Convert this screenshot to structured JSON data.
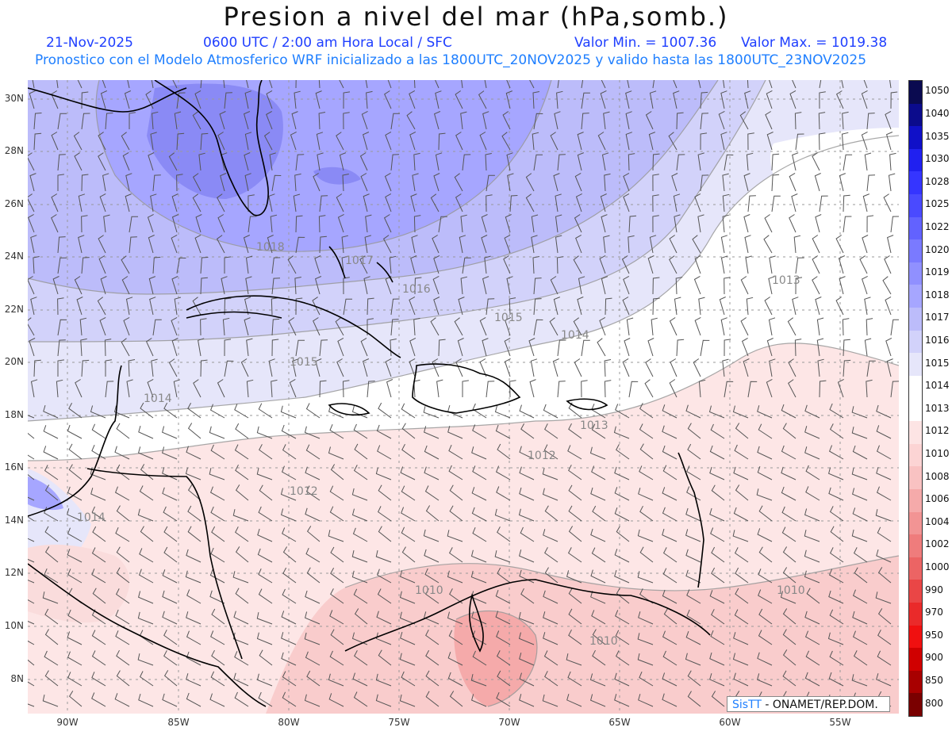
{
  "header": {
    "title": "Presion a nivel del mar (hPa,somb.)",
    "date": "21-Nov-2025",
    "time": "0600 UTC / 2:00 am Hora Local / SFC",
    "vmin": "Valor Min. = 1007.36",
    "vmax": "Valor Max. = 1019.38",
    "forecast": "Pronostico con el Modelo Atmosferico WRF inicializado a las 1800UTC_20NOV2025 y valido hasta las  1800UTC_23NOV2025"
  },
  "map": {
    "lat_labels": [
      "30N",
      "28N",
      "26N",
      "24N",
      "22N",
      "20N",
      "18N",
      "16N",
      "14N",
      "12N",
      "10N",
      "8N"
    ],
    "lon_labels": [
      "90W",
      "85W",
      "80W",
      "75W",
      "70W",
      "65W",
      "60W",
      "55W"
    ],
    "contour_labels": [
      "1018",
      "1017",
      "1016",
      "1015",
      "1015",
      "1014",
      "1014",
      "1013",
      "1013",
      "1012",
      "1012",
      "1014",
      "1010",
      "1010",
      "1010"
    ],
    "credit_brand": "SisTT",
    "credit_text": " - ONAMET/REP.DOM."
  },
  "colorbar": {
    "levels": [
      "1050",
      "1040",
      "1035",
      "1030",
      "1028",
      "1025",
      "1022",
      "1020",
      "1019",
      "1018",
      "1017",
      "1016",
      "1015",
      "1014",
      "1013",
      "1012",
      "1010",
      "1008",
      "1006",
      "1004",
      "1002",
      "1000",
      "990",
      "970",
      "950",
      "900",
      "850",
      "800"
    ],
    "colors": [
      "#0a0a50",
      "#0b0b8c",
      "#1010c8",
      "#2020f0",
      "#3535ff",
      "#4a4aff",
      "#6262ff",
      "#7a7aff",
      "#9090ff",
      "#a6a6ff",
      "#bcbcfa",
      "#d2d2fa",
      "#e6e6fa",
      "#ffffff",
      "#ffffff",
      "#fde4e4",
      "#fcd4d4",
      "#f9c2c2",
      "#f5aaaa",
      "#f29494",
      "#ef7c7c",
      "#ec6464",
      "#ea4646",
      "#ea2a2a",
      "#f01010",
      "#d00000",
      "#a80000",
      "#7a0000"
    ]
  }
}
